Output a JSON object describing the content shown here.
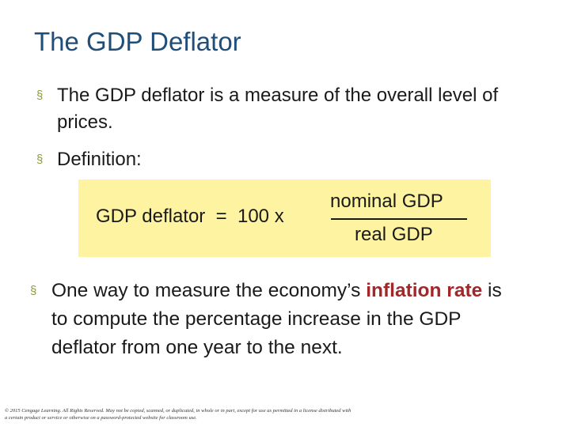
{
  "slide": {
    "title": "The GDP Deflator",
    "bullet_marker": "§",
    "bullets": [
      {
        "text": "The GDP deflator is a measure of the overall level of prices."
      },
      {
        "text": "Definition:"
      },
      {
        "before": "One way to measure the economy’s ",
        "highlight_1": "inflation",
        "between": " ",
        "highlight_2": "rate",
        "after": " is to compute the percentage increase in the GDP deflator from one year to the next."
      }
    ],
    "formula": {
      "lhs": "GDP deflator  =  100 x",
      "numerator": "nominal GDP",
      "denominator": "real GDP"
    },
    "copyright": "© 2015 Cengage Learning. All Rights Reserved. May not be copied, scanned, or duplicated, in whole or in part, except for use as permitted in a license distributed with a certain product or service or otherwise on a password-protected website for classroom use."
  },
  "colors": {
    "title": "#1f4e79",
    "bullet_marker": "#8a9a3b",
    "highlight": "#a0282b",
    "formula_background": "#fdf3a0"
  }
}
